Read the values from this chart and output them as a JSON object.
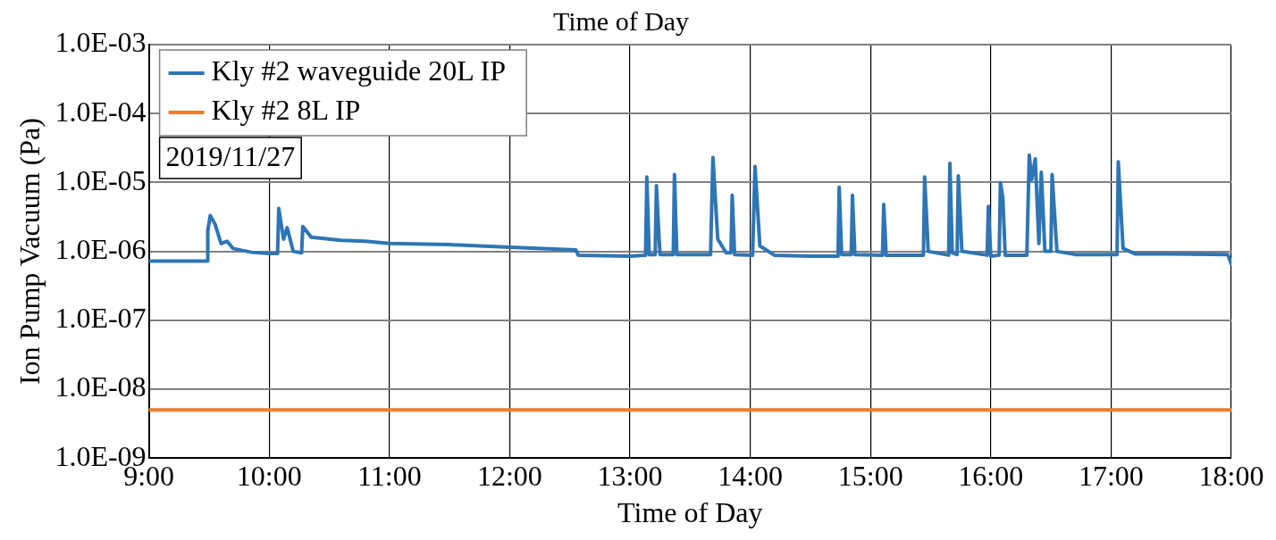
{
  "chart_data": {
    "type": "line",
    "title": "Time of Day",
    "xlabel": "Time of Day",
    "ylabel": "Ion Pump Vacuum (Pa)",
    "log": "y",
    "grid": true,
    "legend": "top left",
    "marker": "none",
    "line_style": "solid",
    "annotations": [
      "2019/11/27"
    ],
    "xlim": [
      9,
      18
    ],
    "xticks": [
      {
        "value": 9,
        "label": "9:00"
      },
      {
        "value": 10,
        "label": "10:00"
      },
      {
        "value": 11,
        "label": "11:00"
      },
      {
        "value": 12,
        "label": "12:00"
      },
      {
        "value": 13,
        "label": "13:00"
      },
      {
        "value": 14,
        "label": "14:00"
      },
      {
        "value": 15,
        "label": "15:00"
      },
      {
        "value": 16,
        "label": "16:00"
      },
      {
        "value": 17,
        "label": "17:00"
      },
      {
        "value": 18,
        "label": "18:00"
      }
    ],
    "ylim": [
      1e-09,
      0.001
    ],
    "yticks": [
      {
        "value": 1e-09,
        "label": "1.0E-09"
      },
      {
        "value": 1e-08,
        "label": "1.0E-08"
      },
      {
        "value": 1e-07,
        "label": "1.0E-07"
      },
      {
        "value": 1e-06,
        "label": "1.0E-06"
      },
      {
        "value": 1e-05,
        "label": "1.0E-05"
      },
      {
        "value": 0.0001,
        "label": "1.0E-04"
      },
      {
        "value": 0.001,
        "label": "1.0E-03"
      }
    ],
    "series": [
      {
        "name": "Kly #2 waveguide 20L IP",
        "color": "#2e75b6",
        "x": [
          9,
          9.49,
          9.49,
          9.51,
          9.55,
          9.6,
          9.65,
          9.7,
          9.85,
          10,
          10.07,
          10.08,
          10.12,
          10.15,
          10.2,
          10.27,
          10.28,
          10.35,
          10.6,
          10.8,
          11,
          11.5,
          12,
          12.55,
          12.57,
          13,
          13.13,
          13.14,
          13.16,
          13.21,
          13.22,
          13.24,
          13.25,
          13.36,
          13.37,
          13.39,
          13.67,
          13.69,
          13.73,
          13.8,
          13.84,
          13.85,
          13.87,
          14.02,
          14.04,
          14.08,
          14.2,
          14.5,
          14.73,
          14.74,
          14.76,
          14.84,
          14.85,
          14.87,
          15.1,
          15.11,
          15.13,
          15.44,
          15.45,
          15.48,
          15.65,
          15.66,
          15.68,
          15.72,
          15.73,
          15.76,
          15.97,
          15.98,
          16,
          16.07,
          16.08,
          16.1,
          16.12,
          16.3,
          16.32,
          16.34,
          16.37,
          16.4,
          16.42,
          16.45,
          16.5,
          16.51,
          16.55,
          16.7,
          17.05,
          17.06,
          17.1,
          17.2,
          17.5,
          17.97,
          18
        ],
        "values": [
          7.2e-07,
          7.2e-07,
          2e-06,
          3.3e-06,
          2.5e-06,
          1.3e-06,
          1.4e-06,
          1.1e-06,
          9.7e-07,
          9.3e-07,
          9.3e-07,
          4.2e-06,
          1.5e-06,
          2.2e-06,
          1e-06,
          9.5e-07,
          2.3e-06,
          1.6e-06,
          1.45e-06,
          1.4e-06,
          1.3e-06,
          1.25e-06,
          1.15e-06,
          1.05e-06,
          8.8e-07,
          8.5e-07,
          8.8e-07,
          1.2e-05,
          9e-07,
          9e-07,
          9e-06,
          1.8e-06,
          9e-07,
          9e-07,
          1.3e-05,
          9e-07,
          9e-07,
          2.3e-05,
          1.5e-06,
          9.5e-07,
          9.5e-07,
          6.5e-06,
          9e-07,
          8.8e-07,
          1.7e-05,
          1.2e-06,
          8.8e-07,
          8.5e-07,
          8.5e-07,
          8.5e-06,
          9e-07,
          9e-07,
          6.5e-06,
          9e-07,
          8.8e-07,
          4.8e-06,
          8.8e-07,
          8.8e-07,
          1.2e-05,
          1e-06,
          8.8e-07,
          1.9e-05,
          9.5e-07,
          9e-07,
          1.25e-05,
          1e-06,
          8.8e-07,
          4.5e-06,
          8.5e-07,
          8.8e-07,
          1e-05,
          6e-06,
          8.8e-07,
          8.8e-07,
          2.5e-05,
          1.1e-05,
          2.2e-05,
          1.3e-06,
          1.4e-05,
          1e-06,
          1e-06,
          1.3e-05,
          1e-06,
          9e-07,
          9e-07,
          2e-05,
          1.1e-06,
          9.2e-07,
          9.2e-07,
          9e-07,
          6.5e-07
        ]
      },
      {
        "name": "Kly #2 8L IP",
        "color": "#ed7d31",
        "x": [
          9,
          18
        ],
        "values": [
          5e-09,
          5e-09
        ]
      }
    ]
  }
}
